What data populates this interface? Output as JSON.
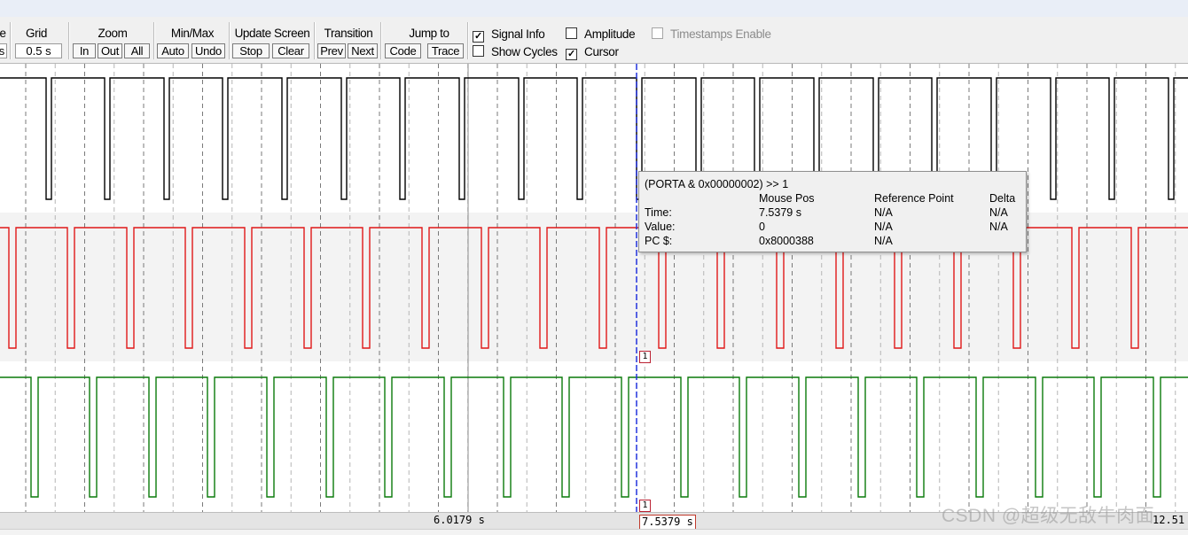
{
  "toolbar": {
    "setup": {
      "title": "e",
      "value": "s"
    },
    "grid": {
      "title": "Grid",
      "value": "0.5 s"
    },
    "zoom": {
      "title": "Zoom",
      "in": "In",
      "out": "Out",
      "all": "All"
    },
    "minmax": {
      "title": "Min/Max",
      "auto": "Auto",
      "undo": "Undo"
    },
    "update": {
      "title": "Update Screen",
      "stop": "Stop",
      "clear": "Clear"
    },
    "transition": {
      "title": "Transition",
      "prev": "Prev",
      "next": "Next"
    },
    "jump": {
      "title": "Jump to",
      "code": "Code",
      "trace": "Trace"
    },
    "checks": {
      "signal_info": {
        "label": "Signal Info",
        "checked": true
      },
      "amplitude": {
        "label": "Amplitude",
        "checked": false
      },
      "timestamps": {
        "label": "Timestamps Enable",
        "checked": false,
        "disabled": true
      },
      "show_cycles": {
        "label": "Show Cycles",
        "checked": false
      },
      "cursor": {
        "label": "Cursor",
        "checked": true
      }
    }
  },
  "tooltip": {
    "expr": "(PORTA & 0x00000002) >> 1",
    "col_mouse": "Mouse Pos",
    "col_ref": "Reference Point",
    "col_delta": "Delta",
    "time_label": "Time:",
    "value_label": "Value:",
    "pc_label": "PC $:",
    "time_mouse": "7.5379 s",
    "time_ref": "N/A",
    "time_delta": "N/A",
    "value_mouse": "0",
    "value_ref": "N/A",
    "value_delta": "N/A",
    "pc_mouse": "0x8000388",
    "pc_ref": "N/A"
  },
  "timeline": {
    "mid_time": "6.0179 s",
    "cursor_time": "7.5379 s",
    "right_time": "12.51",
    "marker_label": "1"
  },
  "signals": [
    {
      "color": "#000000",
      "period": 0.5,
      "pulse_width": 0.055
    },
    {
      "color": "#e01818",
      "period": 0.5,
      "pulse_width": 0.055
    },
    {
      "color": "#0a7a0a",
      "period": 0.5,
      "pulse_width": 0.055
    }
  ],
  "watermark": "CSDN @超级无敌牛肉面"
}
